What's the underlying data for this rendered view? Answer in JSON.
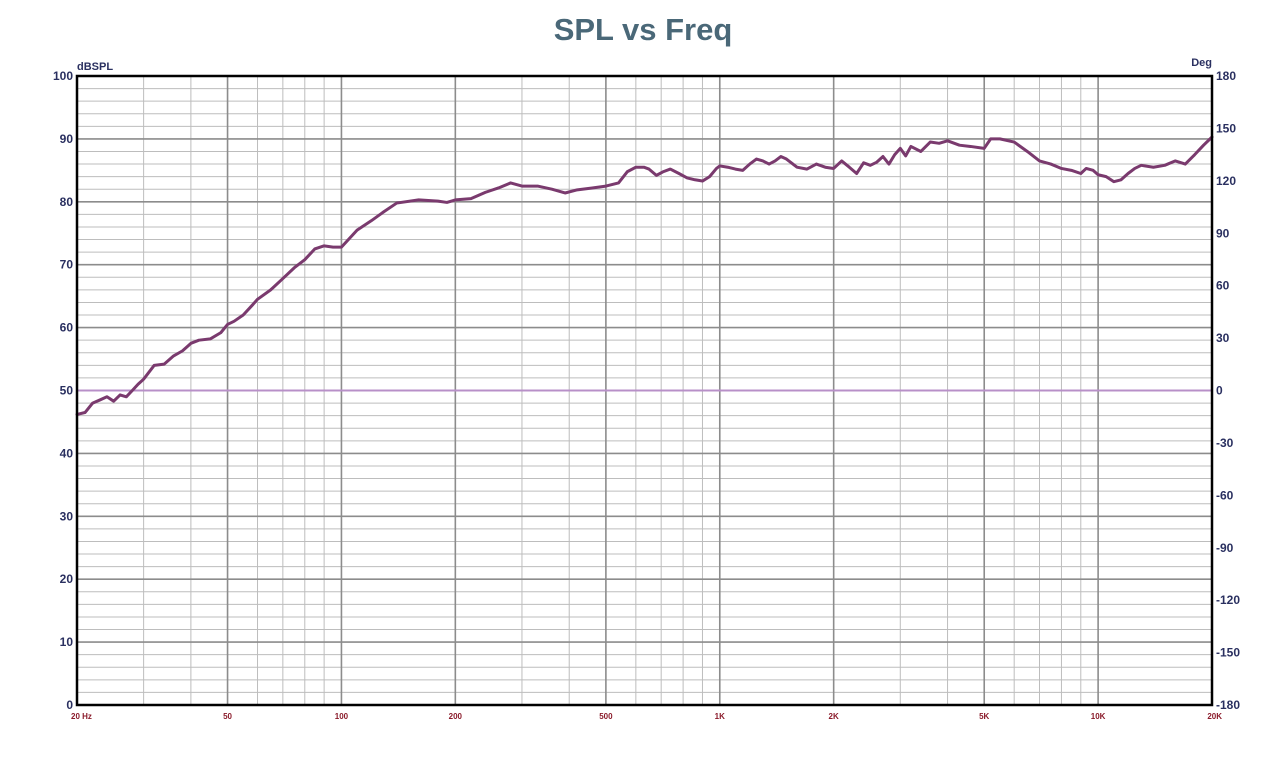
{
  "chart_data": {
    "type": "line",
    "title": "SPL vs Freq",
    "ylabel_left": "dBSPL",
    "ylabel_right": "Deg",
    "x_scale": "log",
    "xlim": [
      20,
      20000
    ],
    "ylim": [
      0,
      100
    ],
    "ylim_right": [
      -180,
      180
    ],
    "grid": true,
    "xticks": [
      {
        "value": 20,
        "label": "20 Hz"
      },
      {
        "value": 50,
        "label": "50"
      },
      {
        "value": 100,
        "label": "100"
      },
      {
        "value": 200,
        "label": "200"
      },
      {
        "value": 500,
        "label": "500"
      },
      {
        "value": 1000,
        "label": "1K"
      },
      {
        "value": 2000,
        "label": "2K"
      },
      {
        "value": 5000,
        "label": "5K"
      },
      {
        "value": 10000,
        "label": "10K"
      },
      {
        "value": 20000,
        "label": "20K"
      }
    ],
    "yticks_left": [
      "0",
      "10",
      "20",
      "30",
      "40",
      "50",
      "60",
      "70",
      "80",
      "90",
      "100"
    ],
    "yticks_right": [
      "-180",
      "-150",
      "-120",
      "-90",
      "-60",
      "-30",
      "0",
      "30",
      "60",
      "90",
      "120",
      "150",
      "180"
    ],
    "colors": {
      "spl": "#7a3a6e",
      "phase": "#b890c8",
      "major_grid": "#8c8c8c",
      "minor_grid": "#bdbdbd",
      "frame": "#000000"
    },
    "series": [
      {
        "axis": "left",
        "points": [
          [
            20,
            46.2
          ],
          [
            21,
            46.5
          ],
          [
            22,
            48
          ],
          [
            23,
            48.5
          ],
          [
            24,
            49
          ],
          [
            25,
            48.3
          ],
          [
            26,
            49.3
          ],
          [
            27,
            49
          ],
          [
            28,
            50
          ],
          [
            29,
            51
          ],
          [
            30,
            51.8
          ],
          [
            32,
            54
          ],
          [
            34,
            54.2
          ],
          [
            36,
            55.5
          ],
          [
            38,
            56.3
          ],
          [
            40,
            57.5
          ],
          [
            42,
            58
          ],
          [
            45,
            58.2
          ],
          [
            48,
            59.2
          ],
          [
            50,
            60.5
          ],
          [
            52,
            61
          ],
          [
            55,
            62
          ],
          [
            58,
            63.5
          ],
          [
            60,
            64.5
          ],
          [
            65,
            66
          ],
          [
            70,
            67.8
          ],
          [
            75,
            69.5
          ],
          [
            80,
            70.8
          ],
          [
            85,
            72.5
          ],
          [
            90,
            73
          ],
          [
            95,
            72.8
          ],
          [
            100,
            72.8
          ],
          [
            110,
            75.5
          ],
          [
            120,
            77
          ],
          [
            130,
            78.5
          ],
          [
            140,
            79.8
          ],
          [
            160,
            80.3
          ],
          [
            180,
            80.1
          ],
          [
            190,
            79.9
          ],
          [
            200,
            80.3
          ],
          [
            220,
            80.5
          ],
          [
            240,
            81.5
          ],
          [
            260,
            82.2
          ],
          [
            280,
            83
          ],
          [
            300,
            82.5
          ],
          [
            330,
            82.5
          ],
          [
            360,
            82
          ],
          [
            390,
            81.4
          ],
          [
            420,
            81.9
          ],
          [
            460,
            82.2
          ],
          [
            500,
            82.5
          ],
          [
            540,
            83
          ],
          [
            570,
            84.8
          ],
          [
            600,
            85.5
          ],
          [
            630,
            85.5
          ],
          [
            650,
            85.2
          ],
          [
            680,
            84.2
          ],
          [
            710,
            84.8
          ],
          [
            740,
            85.2
          ],
          [
            780,
            84.5
          ],
          [
            820,
            83.8
          ],
          [
            860,
            83.5
          ],
          [
            900,
            83.3
          ],
          [
            940,
            84
          ],
          [
            980,
            85.3
          ],
          [
            1000,
            85.7
          ],
          [
            1050,
            85.5
          ],
          [
            1100,
            85.2
          ],
          [
            1150,
            85
          ],
          [
            1200,
            86
          ],
          [
            1250,
            86.8
          ],
          [
            1300,
            86.5
          ],
          [
            1350,
            86
          ],
          [
            1400,
            86.5
          ],
          [
            1450,
            87.2
          ],
          [
            1500,
            86.8
          ],
          [
            1600,
            85.5
          ],
          [
            1700,
            85.2
          ],
          [
            1800,
            86
          ],
          [
            1900,
            85.5
          ],
          [
            2000,
            85.3
          ],
          [
            2100,
            86.5
          ],
          [
            2200,
            85.5
          ],
          [
            2300,
            84.5
          ],
          [
            2400,
            86.2
          ],
          [
            2500,
            85.8
          ],
          [
            2600,
            86.3
          ],
          [
            2700,
            87.2
          ],
          [
            2800,
            86
          ],
          [
            2900,
            87.5
          ],
          [
            3000,
            88.5
          ],
          [
            3100,
            87.3
          ],
          [
            3200,
            88.8
          ],
          [
            3400,
            88
          ],
          [
            3600,
            89.5
          ],
          [
            3800,
            89.3
          ],
          [
            4000,
            89.7
          ],
          [
            4300,
            89
          ],
          [
            4600,
            88.8
          ],
          [
            5000,
            88.5
          ],
          [
            5200,
            90
          ],
          [
            5500,
            90
          ],
          [
            6000,
            89.5
          ],
          [
            6500,
            88
          ],
          [
            7000,
            86.5
          ],
          [
            7500,
            86
          ],
          [
            8000,
            85.3
          ],
          [
            8500,
            85
          ],
          [
            9000,
            84.5
          ],
          [
            9300,
            85.3
          ],
          [
            9700,
            85
          ],
          [
            10000,
            84.3
          ],
          [
            10500,
            84
          ],
          [
            11000,
            83.2
          ],
          [
            11500,
            83.5
          ],
          [
            12000,
            84.5
          ],
          [
            12500,
            85.3
          ],
          [
            13000,
            85.8
          ],
          [
            14000,
            85.5
          ],
          [
            15000,
            85.8
          ],
          [
            16000,
            86.5
          ],
          [
            17000,
            86
          ],
          [
            18000,
            87.5
          ],
          [
            19000,
            89
          ],
          [
            20000,
            90.3
          ]
        ]
      },
      {
        "axis": "right",
        "points": [
          [
            20,
            0
          ],
          [
            20000,
            0
          ]
        ]
      }
    ]
  }
}
